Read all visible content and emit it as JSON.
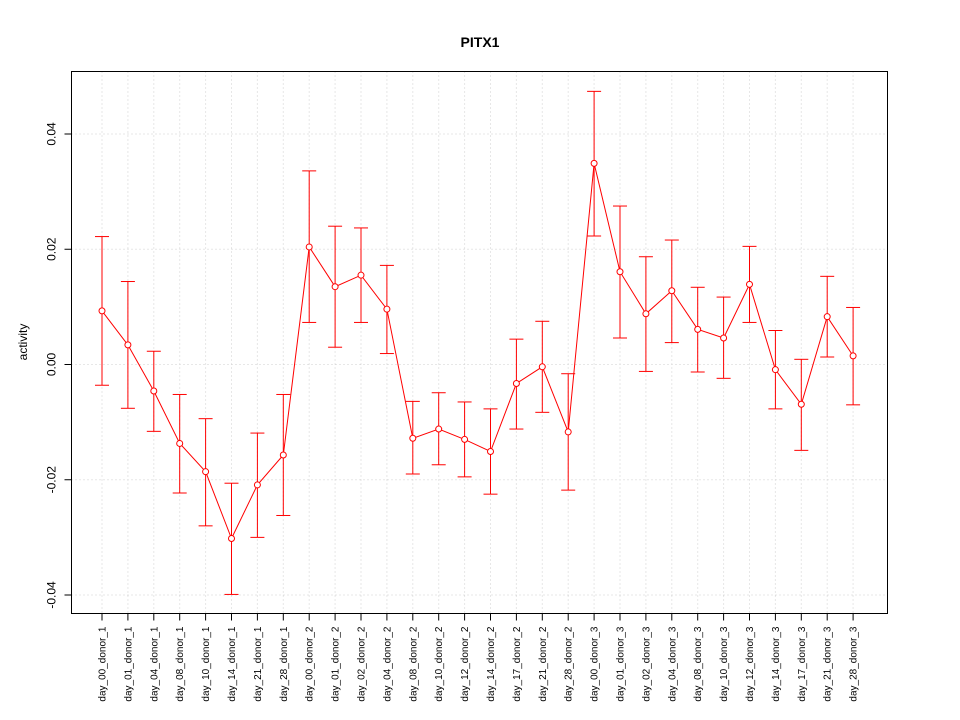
{
  "chart_data": {
    "type": "line",
    "title": "PITX1",
    "xlabel": "",
    "ylabel": "activity",
    "ylim": [
      -0.043,
      0.051
    ],
    "grid": true,
    "color": "#ff0000",
    "yticks": [
      -0.04,
      -0.02,
      0.0,
      0.02,
      0.04
    ],
    "ytick_labels": [
      "-0.04",
      "-0.02",
      "0.00",
      "0.02",
      "0.04"
    ],
    "categories": [
      "day_00_donor_1",
      "day_01_donor_1",
      "day_04_donor_1",
      "day_08_donor_1",
      "day_10_donor_1",
      "day_14_donor_1",
      "day_21_donor_1",
      "day_28_donor_1",
      "day_00_donor_2",
      "day_01_donor_2",
      "day_02_donor_2",
      "day_04_donor_2",
      "day_08_donor_2",
      "day_10_donor_2",
      "day_12_donor_2",
      "day_14_donor_2",
      "day_17_donor_2",
      "day_21_donor_2",
      "day_28_donor_2",
      "day_00_donor_3",
      "day_01_donor_3",
      "day_02_donor_3",
      "day_04_donor_3",
      "day_08_donor_3",
      "day_10_donor_3",
      "day_12_donor_3",
      "day_14_donor_3",
      "day_17_donor_3",
      "day_21_donor_3",
      "day_28_donor_3"
    ],
    "values": [
      0.0093,
      0.0034,
      -0.0046,
      -0.0137,
      -0.0186,
      -0.0302,
      -0.0209,
      -0.0157,
      0.0204,
      0.0135,
      0.0155,
      0.0096,
      -0.0128,
      -0.0112,
      -0.013,
      -0.0151,
      -0.0033,
      -0.0004,
      -0.0117,
      0.0349,
      0.0161,
      0.0088,
      0.0128,
      0.0061,
      0.0046,
      0.0139,
      -0.0009,
      -0.0069,
      0.0083,
      0.0015
    ],
    "upper": [
      0.0222,
      0.0144,
      0.0023,
      -0.0052,
      -0.0094,
      -0.0206,
      -0.0119,
      -0.0052,
      0.0336,
      0.024,
      0.0237,
      0.0172,
      -0.0064,
      -0.0049,
      -0.0065,
      -0.0077,
      0.0044,
      0.0075,
      -0.0016,
      0.0474,
      0.0275,
      0.0187,
      0.0216,
      0.0134,
      0.0117,
      0.0205,
      0.0059,
      0.0009,
      0.0153,
      0.0099
    ],
    "lower": [
      -0.0036,
      -0.0076,
      -0.0116,
      -0.0223,
      -0.028,
      -0.0399,
      -0.03,
      -0.0262,
      0.0073,
      0.003,
      0.0073,
      0.0019,
      -0.019,
      -0.0174,
      -0.0195,
      -0.0225,
      -0.0112,
      -0.0083,
      -0.0218,
      0.0223,
      0.0046,
      -0.0012,
      0.0038,
      -0.0013,
      -0.0024,
      0.0073,
      -0.0077,
      -0.0149,
      0.0013,
      -0.007
    ]
  }
}
